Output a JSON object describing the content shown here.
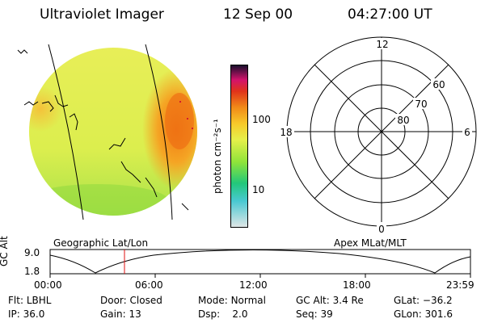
{
  "header": {
    "instrument": "Ultraviolet Imager",
    "date": "12 Sep 00",
    "time": "04:27:00 UT"
  },
  "colorbar": {
    "unit_label": "photon cm⁻²s⁻¹",
    "ticks": [
      "100",
      "10"
    ],
    "scale": "log",
    "colors": [
      "#dfe6e6",
      "#49c8d2",
      "#22c77a",
      "#8ee43a",
      "#e6f04a",
      "#f7c92a",
      "#f18a18",
      "#e0331a",
      "#d3136c",
      "#1a0f2e"
    ]
  },
  "polar_plot": {
    "mlt_labels": [
      "12",
      "18",
      "6",
      "0"
    ],
    "lat_labels": [
      "60",
      "70",
      "80"
    ]
  },
  "altitude_panel": {
    "ylabel": "GC Alt",
    "yticks": [
      "9.0",
      "1.8"
    ],
    "left_caption": "Geographic Lat/Lon",
    "right_caption": "Apex MLat/MLT",
    "xticks": [
      "00:00",
      "06:00",
      "12:00",
      "18:00",
      "23:59"
    ],
    "marker_color": "#e01010"
  },
  "info_rows": [
    [
      {
        "key": "Flt:",
        "value": "LBHL"
      },
      {
        "key": "Door:",
        "value": "Closed"
      },
      {
        "key": "Mode:",
        "value": "Normal"
      },
      {
        "key": "GC Alt:",
        "value": "3.4 Re"
      },
      {
        "key": "GLat:",
        "value": "−36.2"
      }
    ],
    [
      {
        "key": "IP:",
        "value": "36.0"
      },
      {
        "key": "Gain:",
        "value": "13"
      },
      {
        "key": "Dsp:",
        "value": "2.0"
      },
      {
        "key": "Seq:",
        "value": "39"
      },
      {
        "key": "GLon:",
        "value": "301.6"
      }
    ]
  ]
}
